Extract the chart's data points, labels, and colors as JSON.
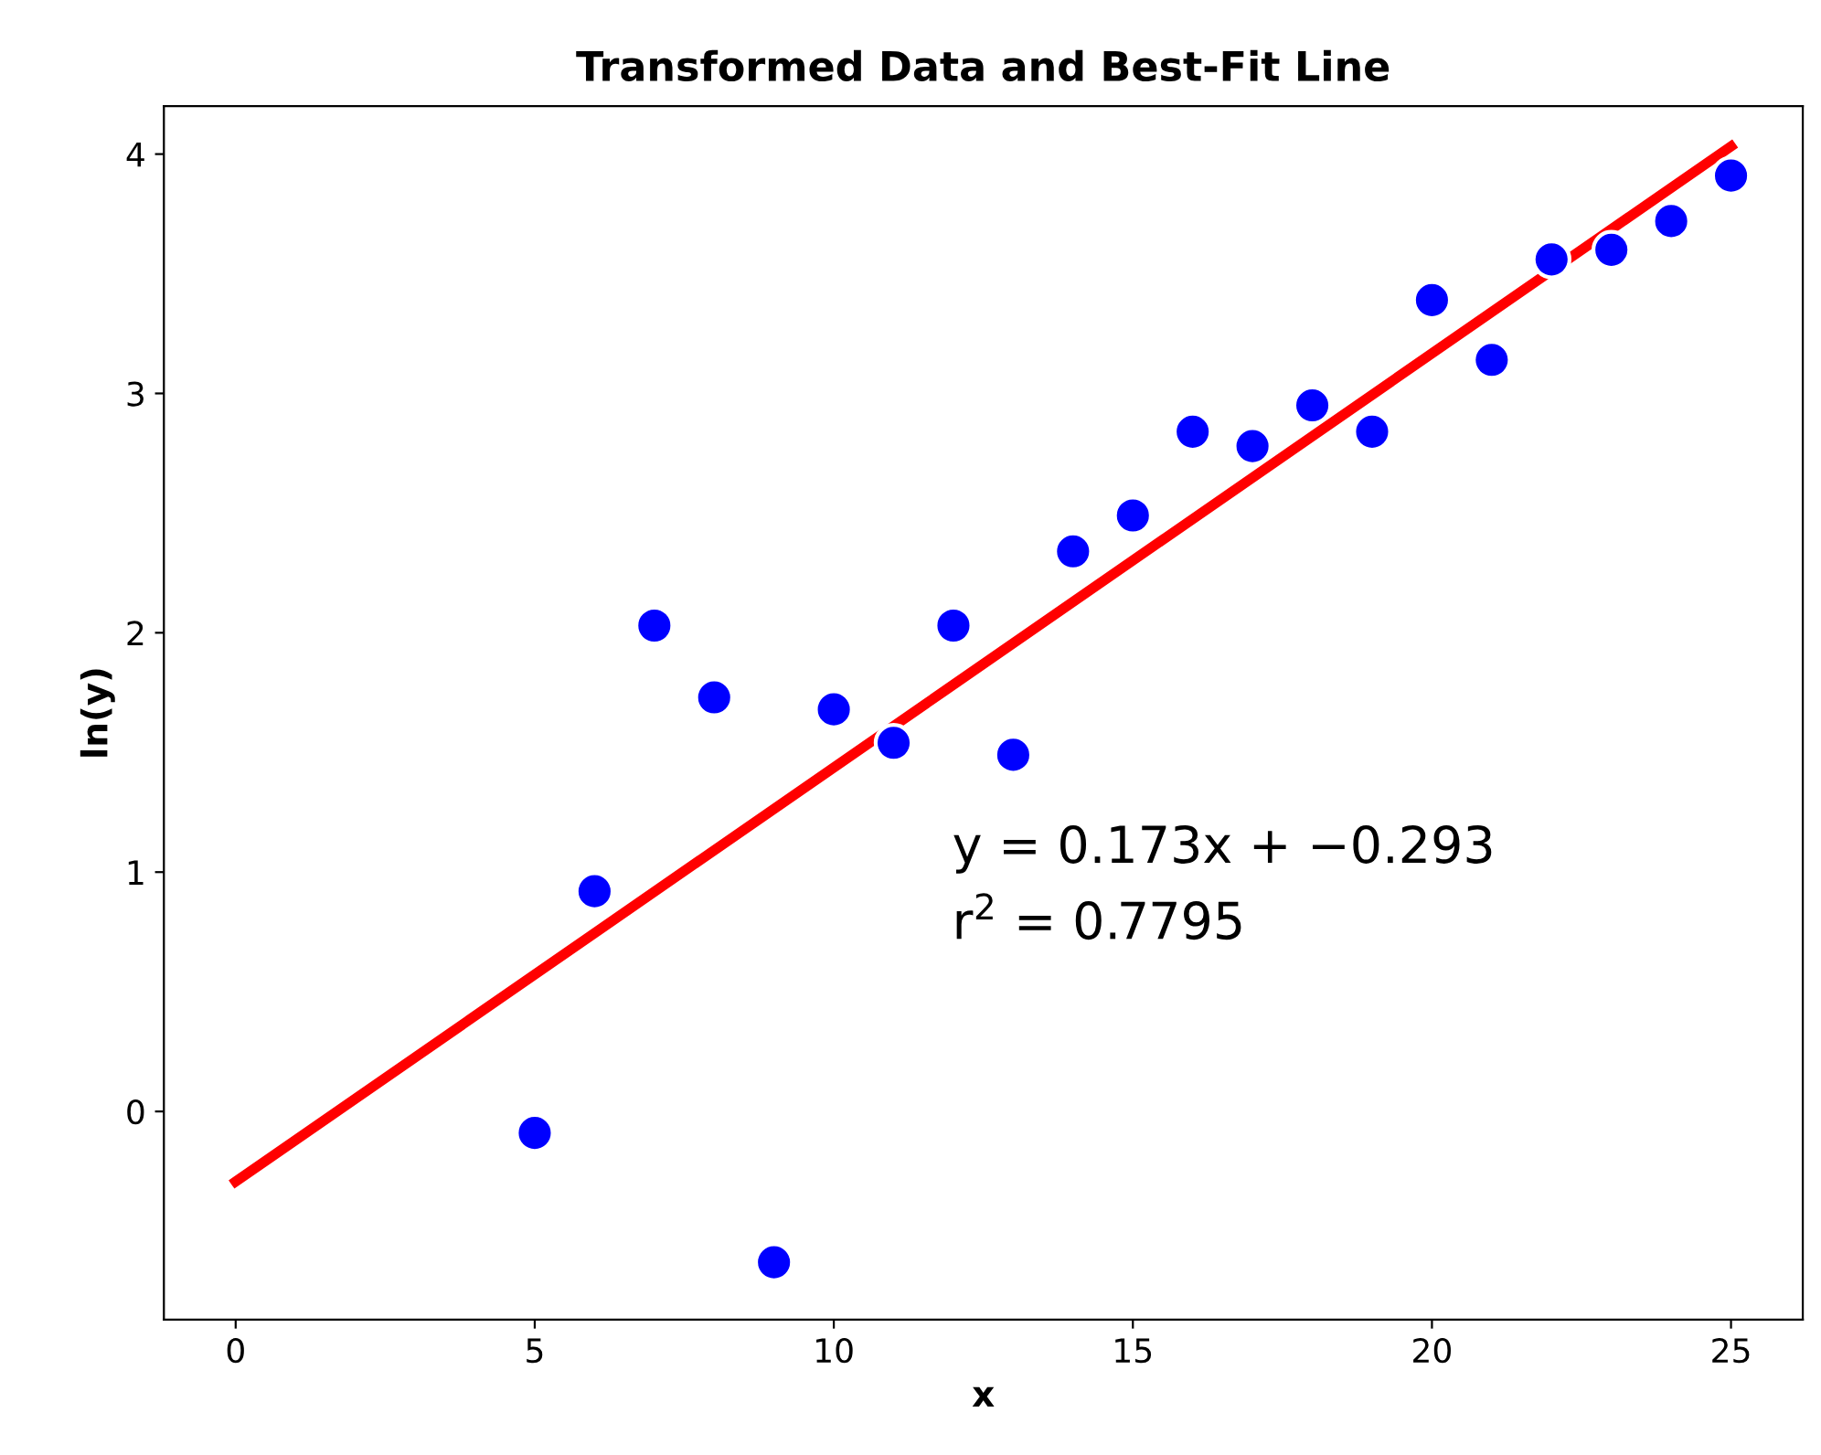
{
  "chart_data": {
    "type": "scatter",
    "title": "Transformed Data and Best-Fit Line",
    "xlabel": "x",
    "ylabel": "ln(y)",
    "xlim": [
      -1.2,
      26.2
    ],
    "ylim": [
      -0.87,
      4.2
    ],
    "xticks": [
      0,
      5,
      10,
      15,
      20,
      25
    ],
    "yticks": [
      0,
      1,
      2,
      3,
      4
    ],
    "grid": false,
    "legend": false,
    "series": [
      {
        "marker": "circle",
        "color": "#0000ff",
        "x": [
          5,
          6,
          7,
          8,
          9,
          10,
          11,
          12,
          13,
          14,
          15,
          16,
          17,
          18,
          19,
          20,
          21,
          22,
          23,
          24,
          25
        ],
        "values": [
          -0.09,
          0.92,
          2.03,
          1.73,
          -0.63,
          1.68,
          1.54,
          2.03,
          1.49,
          2.34,
          2.49,
          2.84,
          2.78,
          2.95,
          2.84,
          3.39,
          3.14,
          3.56,
          3.6,
          3.72,
          3.91
        ]
      },
      {
        "type": "line",
        "color": "#ff0000",
        "line_style": "solid",
        "x": [
          0,
          25
        ],
        "values": [
          -0.293,
          4.032
        ]
      }
    ],
    "annotations": [
      "y = 0.173x + −0.293",
      "r$^{2}$ = 0.7795"
    ]
  }
}
